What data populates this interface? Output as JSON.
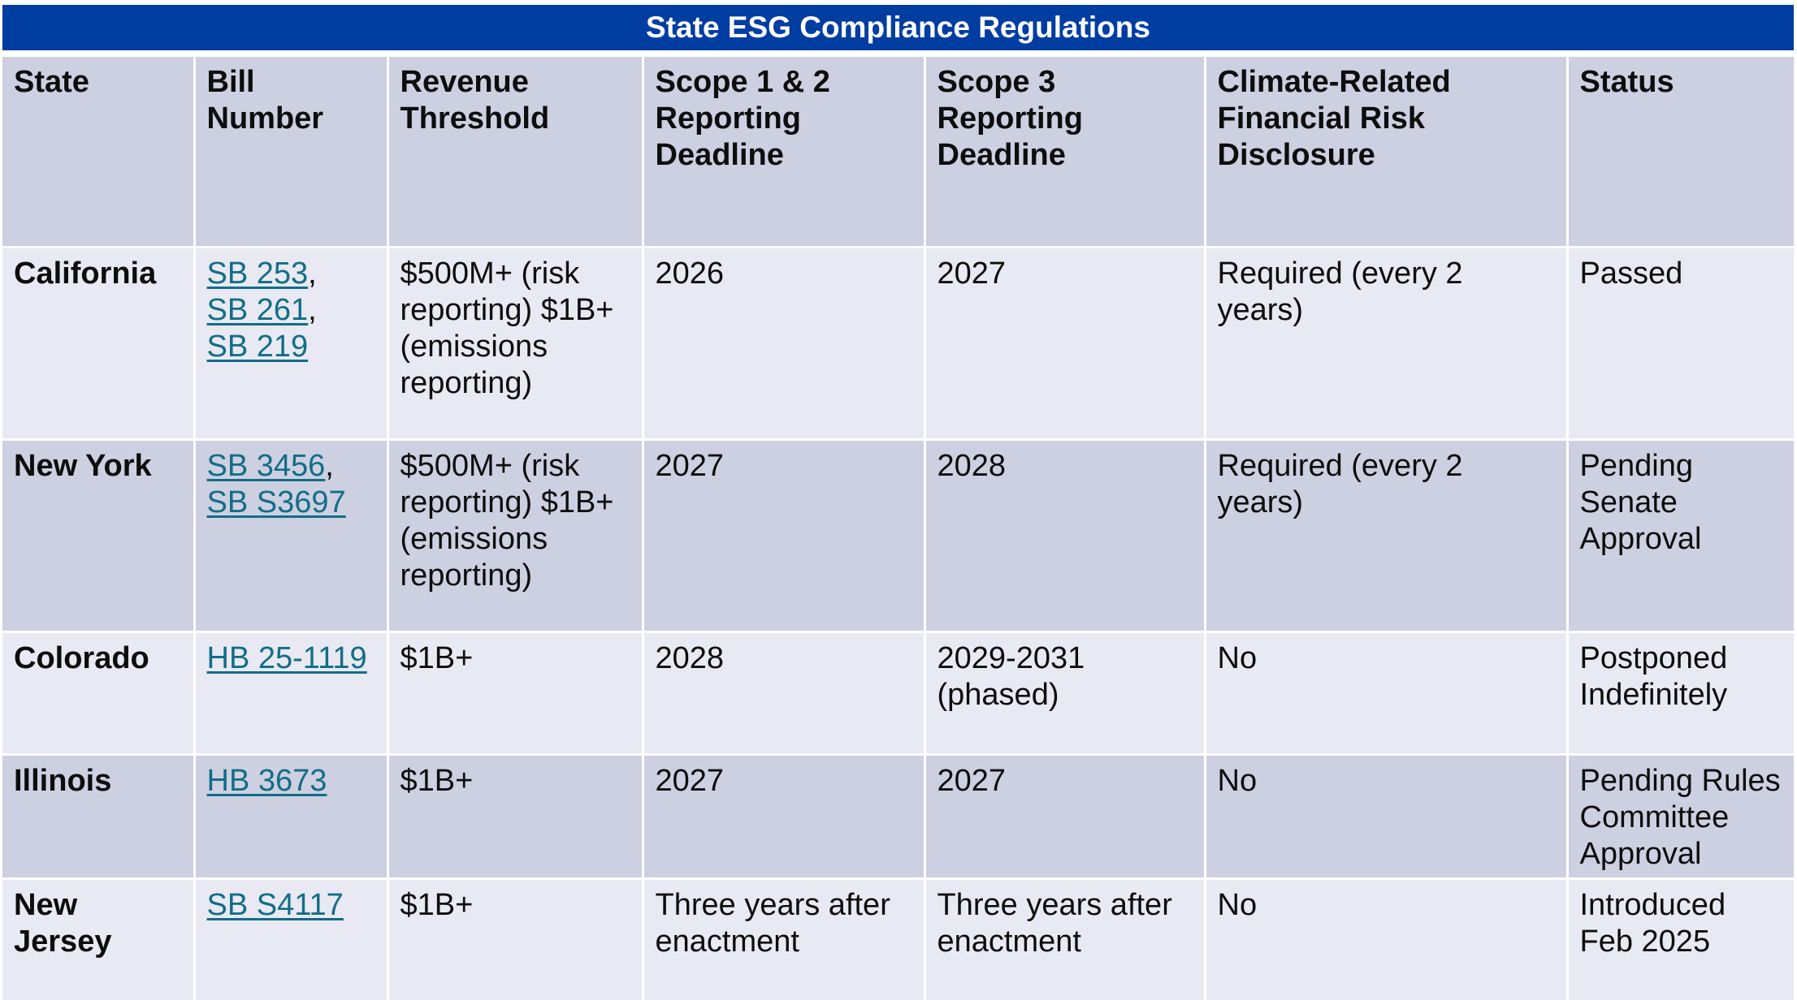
{
  "title": "State ESG Compliance Regulations",
  "headers": [
    "State",
    "Bill Number",
    "Revenue Threshold",
    "Scope 1 & 2 Reporting Deadline",
    "Scope 3 Reporting Deadline",
    "Climate-Related Financial Risk Disclosure",
    "Status"
  ],
  "rows": [
    {
      "state": "California",
      "bills": [
        "SB 253",
        "SB 261",
        "SB 219"
      ],
      "threshold": "$500M+ (risk reporting) $1B+ (emissions reporting)",
      "scope12": "2026",
      "scope3": "2027",
      "risk": "Required (every 2 years)",
      "status": "Passed"
    },
    {
      "state": "New York",
      "bills": [
        "SB 3456",
        "SB S3697"
      ],
      "threshold": "$500M+ (risk reporting) $1B+ (emissions reporting)",
      "scope12": "2027",
      "scope3": "2028",
      "risk": "Required (every 2 years)",
      "status": "Pending Senate Approval"
    },
    {
      "state": "Colorado",
      "bills": [
        "HB 25-1119"
      ],
      "threshold": "$1B+",
      "scope12": "2028",
      "scope3": "2029-2031 (phased)",
      "risk": "No",
      "status": "Postponed Indefinitely"
    },
    {
      "state": "Illinois",
      "bills": [
        "HB 3673"
      ],
      "threshold": "$1B+",
      "scope12": "2027",
      "scope3": "2027",
      "risk": "No",
      "status": "Pending Rules Committee Approval"
    },
    {
      "state": "New Jersey",
      "bills": [
        "SB S4117"
      ],
      "threshold": "$1B+",
      "scope12": "Three years after enactment",
      "scope3": "Three years after enactment",
      "risk": "No",
      "status": "Introduced Feb 2025"
    }
  ],
  "colors": {
    "title_bg": "#003da1",
    "header_bg": "#cdd0e1",
    "row_light": "#e8e9f2",
    "row_dark": "#cdd0e1",
    "link": "#136d87"
  }
}
